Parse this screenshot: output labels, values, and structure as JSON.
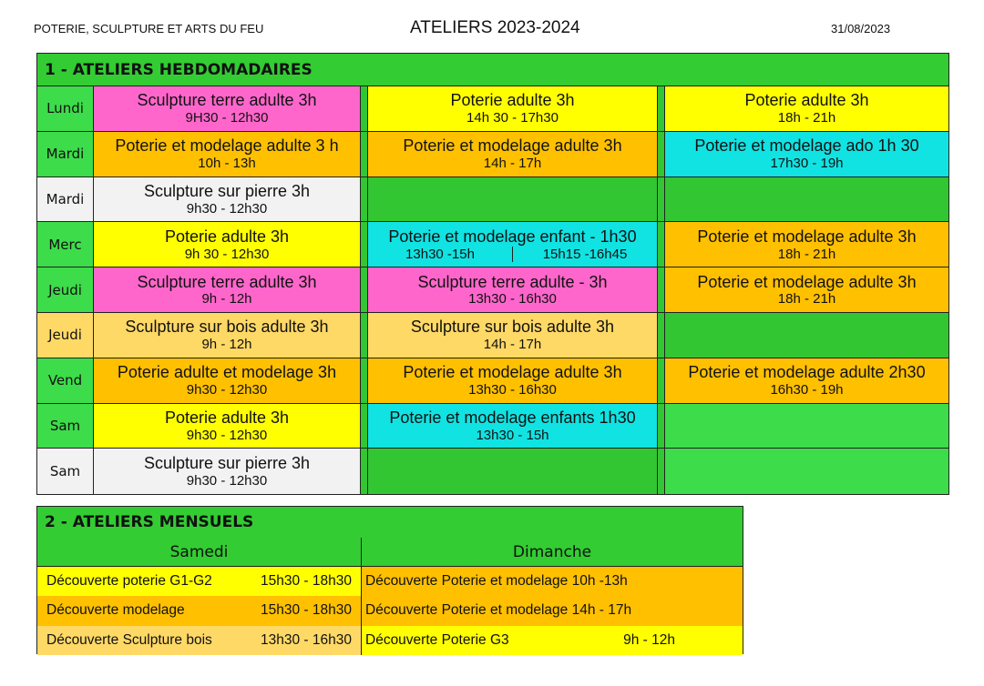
{
  "header": {
    "organization": "POTERIE, SCULPTURE ET ARTS DU FEU",
    "title": "ATELIERS 2023-2024",
    "date": "31/08/2023"
  },
  "colors": {
    "green": "#3ddc4a",
    "dark_green": "#33c633",
    "pink": "#ff66cc",
    "yellow": "#ffff00",
    "orange": "#ffc000",
    "cyan": "#11e3e3",
    "light_orange": "#ffd966",
    "gray": "#f2f2f2"
  },
  "weekly": {
    "title": "1 - ATELIERS HEBDOMADAIRES",
    "rows": [
      {
        "day": "Lundi",
        "day_color": "green",
        "cells": [
          {
            "title": "Sculpture terre adulte 3h",
            "time": "9H30 - 12h30",
            "color": "pink"
          },
          {
            "title": "Poterie adulte 3h",
            "time": "14h 30 - 17h30",
            "color": "yellow"
          },
          {
            "title": "Poterie adulte 3h",
            "time": "18h - 21h",
            "color": "yellow"
          }
        ]
      },
      {
        "day": "Mardi",
        "day_color": "green",
        "cells": [
          {
            "title": "Poterie et modelage adulte 3 h",
            "time": "10h - 13h",
            "color": "orange"
          },
          {
            "title": "Poterie et modelage adulte 3h",
            "time": "14h - 17h",
            "color": "orange"
          },
          {
            "title": "Poterie et modelage ado 1h 30",
            "time": "17h30 - 19h",
            "color": "cyan"
          }
        ]
      },
      {
        "day": "Mardi",
        "day_color": "gray",
        "cells": [
          {
            "title": "Sculpture sur pierre 3h",
            "time": "9h30 - 12h30",
            "color": "gray"
          },
          {
            "color": "dark_green"
          },
          {
            "color": "dark_green"
          }
        ]
      },
      {
        "day": "Merc",
        "day_color": "green",
        "cells": [
          {
            "title": "Poterie adulte 3h",
            "time": "9h 30 - 12h30",
            "color": "yellow"
          },
          {
            "title": "Poterie et modelage enfant - 1h30",
            "times": [
              "13h30 -15h",
              "15h15 -16h45"
            ],
            "color": "cyan"
          },
          {
            "title": "Poterie et modelage adulte 3h",
            "time": "18h - 21h",
            "color": "orange"
          }
        ]
      },
      {
        "day": "Jeudi",
        "day_color": "green",
        "cells": [
          {
            "title": "Sculpture terre adulte 3h",
            "time": "9h - 12h",
            "color": "pink"
          },
          {
            "title": "Sculpture terre adulte - 3h",
            "time": "13h30 - 16h30",
            "color": "pink"
          },
          {
            "title": "Poterie et modelage adulte 3h",
            "time": "18h - 21h",
            "color": "orange"
          }
        ]
      },
      {
        "day": "Jeudi",
        "day_color": "light_orange",
        "cells": [
          {
            "title": "Sculpture sur bois adulte 3h",
            "time": "9h - 12h",
            "color": "light_orange"
          },
          {
            "title": "Sculpture sur bois adulte 3h",
            "time": "14h - 17h",
            "color": "light_orange"
          },
          {
            "color": "dark_green"
          }
        ]
      },
      {
        "day": "Vend",
        "day_color": "green",
        "cells": [
          {
            "title": "Poterie adulte et modelage 3h",
            "time": "9h30 - 12h30",
            "color": "orange"
          },
          {
            "title": "Poterie et modelage adulte 3h",
            "time": "13h30 - 16h30",
            "color": "orange"
          },
          {
            "title": "Poterie et modelage adulte 2h30",
            "time": "16h30 - 19h",
            "color": "orange"
          }
        ]
      },
      {
        "day": "Sam",
        "day_color": "green",
        "cells": [
          {
            "title": "Poterie adulte 3h",
            "time": "9h30 - 12h30",
            "color": "yellow"
          },
          {
            "title": "Poterie et modelage enfants 1h30",
            "time": "13h30 - 15h",
            "color": "cyan"
          },
          {
            "color": "green"
          }
        ]
      },
      {
        "day": "Sam",
        "day_color": "gray",
        "cells": [
          {
            "title": "Sculpture sur pierre 3h",
            "time": "9h30 - 12h30",
            "color": "gray"
          },
          {
            "color": "dark_green"
          },
          {
            "color": "green"
          }
        ]
      }
    ]
  },
  "monthly": {
    "title": "2 - ATELIERS MENSUELS",
    "columns": [
      "Samedi",
      "Dimanche"
    ],
    "rows": [
      [
        {
          "label": "Découverte poterie G1-G2",
          "time": "15h30 - 18h30",
          "color": "yellow"
        },
        {
          "label": "Découverte Poterie et modelage 10h -13h",
          "time": "",
          "color": "orange"
        }
      ],
      [
        {
          "label": "Découverte modelage",
          "time": "15h30 - 18h30",
          "color": "orange"
        },
        {
          "label": "Découverte Poterie et modelage 14h - 17h",
          "time": "",
          "color": "orange"
        }
      ],
      [
        {
          "label": "Découverte Sculpture bois",
          "time": "13h30 - 16h30",
          "color": "light_orange"
        },
        {
          "label": "Découverte Poterie G3",
          "time": "9h - 12h",
          "color": "yellow"
        }
      ]
    ]
  }
}
